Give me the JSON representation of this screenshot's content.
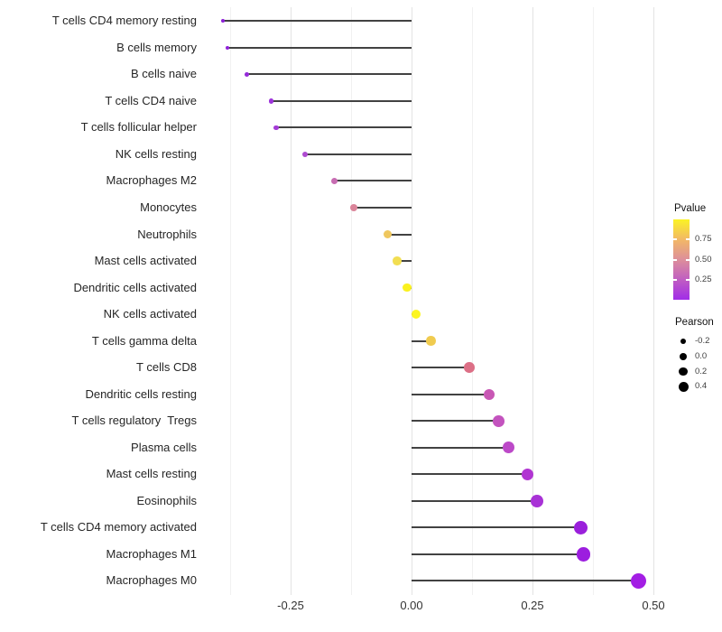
{
  "figure": {
    "background": "#ffffff",
    "grid_major_color": "#e3e3e3",
    "grid_minor_color": "#f1f1f1",
    "stem_color": "#424242",
    "axis_text_color": "#333333"
  },
  "chart_data": {
    "type": "scatter",
    "variant": "horizontal-lollipop",
    "title": "",
    "xlabel": "",
    "ylabel": "",
    "categories": [
      "T cells CD4 memory resting",
      "B cells memory",
      "B cells naive",
      "T cells CD4 naive",
      "T cells follicular helper",
      "NK cells resting",
      "Macrophages M2",
      "Monocytes",
      "Neutrophils",
      "Mast cells activated",
      "Dendritic cells activated",
      "NK cells activated",
      "T cells gamma delta",
      "T cells CD8",
      "Dendritic cells resting",
      "T cells regulatory  Tregs",
      "Plasma cells",
      "Mast cells resting",
      "Eosinophils",
      "T cells CD4 memory activated",
      "Macrophages M1",
      "Macrophages M0"
    ],
    "series": [
      {
        "name": "Pearson",
        "values": [
          -0.39,
          -0.38,
          -0.34,
          -0.29,
          -0.28,
          -0.22,
          -0.16,
          -0.12,
          -0.05,
          -0.03,
          -0.01,
          0.01,
          0.04,
          0.12,
          0.16,
          0.18,
          0.2,
          0.24,
          0.26,
          0.35,
          0.355,
          0.47
        ]
      },
      {
        "name": "Pvalue (estimated from point color)",
        "values": [
          0.05,
          0.06,
          0.08,
          0.11,
          0.13,
          0.17,
          0.38,
          0.52,
          0.78,
          0.87,
          0.97,
          0.98,
          0.82,
          0.5,
          0.31,
          0.28,
          0.24,
          0.17,
          0.14,
          0.07,
          0.06,
          0.02
        ]
      }
    ],
    "point_colors": [
      "#8C1FD6",
      "#9122DA",
      "#952BD9",
      "#9D33DA",
      "#A43BD7",
      "#AE4BD0",
      "#C76CB2",
      "#DA8499",
      "#EFC75E",
      "#F2DE52",
      "#FAF11F",
      "#FCF520",
      "#F0CB4F",
      "#DC6F86",
      "#C857B4",
      "#C353BE",
      "#BC49C8",
      "#B135D2",
      "#A832D6",
      "#9A20DB",
      "#9C1EDF",
      "#A31EE4"
    ],
    "baseline": 0,
    "xlim": [
      -0.438,
      0.519
    ],
    "x_tick_values": [
      -0.25,
      0.0,
      0.25,
      0.5
    ],
    "x_tick_labels": [
      "-0.25",
      "0.00",
      "0.25",
      "0.50"
    ],
    "x_minor_tick_values": [
      -0.375,
      -0.125,
      0.125,
      0.375
    ],
    "grid": "vertical major and minor, no horizontal",
    "legend_position": "right"
  },
  "legend": {
    "pvalue": {
      "title": "Pvalue",
      "range": [
        0,
        1
      ],
      "tick_values": [
        0.75,
        0.5,
        0.25
      ],
      "tick_labels": [
        "0.75",
        "0.50",
        "0.25"
      ],
      "gradient_stops_bottom_to_top": [
        "#A12CE8",
        "#C05EC2",
        "#DD8F9B",
        "#F2B866",
        "#FBF325"
      ]
    },
    "pearson": {
      "title": "Pearson",
      "dot_color": "#000000",
      "items": [
        {
          "label": "-0.2",
          "value": -0.2
        },
        {
          "label": "0.0",
          "value": 0.0
        },
        {
          "label": "0.2",
          "value": 0.2
        },
        {
          "label": "0.4",
          "value": 0.4
        }
      ]
    }
  }
}
